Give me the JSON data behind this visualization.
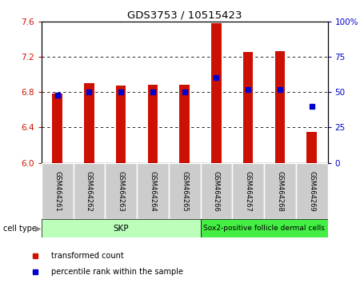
{
  "title": "GDS3753 / 10515423",
  "samples": [
    "GSM464261",
    "GSM464262",
    "GSM464263",
    "GSM464264",
    "GSM464265",
    "GSM464266",
    "GSM464267",
    "GSM464268",
    "GSM464269"
  ],
  "transformed_count": [
    6.78,
    6.9,
    6.87,
    6.88,
    6.88,
    7.58,
    7.25,
    7.26,
    6.35
  ],
  "percentile_rank": [
    48,
    50,
    50,
    50,
    50,
    60,
    52,
    52,
    40
  ],
  "bar_color": "#cc1100",
  "dot_color": "#0000cc",
  "ylim_left": [
    6.0,
    7.6
  ],
  "ylim_right": [
    0,
    100
  ],
  "yticks_left": [
    6.0,
    6.4,
    6.8,
    7.2,
    7.6
  ],
  "yticks_right": [
    0,
    25,
    50,
    75,
    100
  ],
  "ytick_labels_right": [
    "0",
    "25",
    "50",
    "75",
    "100%"
  ],
  "bar_baseline": 6.0,
  "grid_yticks": [
    6.4,
    6.8,
    7.2
  ],
  "skp_count": 5,
  "sox2_label": "Sox2-positive follicle dermal cells",
  "skp_label": "SKP",
  "skp_color": "#bbffbb",
  "sox2_color": "#44ee44",
  "cell_type_label": "cell type",
  "legend_items": [
    {
      "label": "transformed count",
      "color": "#cc1100"
    },
    {
      "label": "percentile rank within the sample",
      "color": "#0000cc"
    }
  ],
  "background_color": "#ffffff",
  "tick_color_left": "#cc1100",
  "tick_color_right": "#0000cc",
  "bar_width": 0.32
}
